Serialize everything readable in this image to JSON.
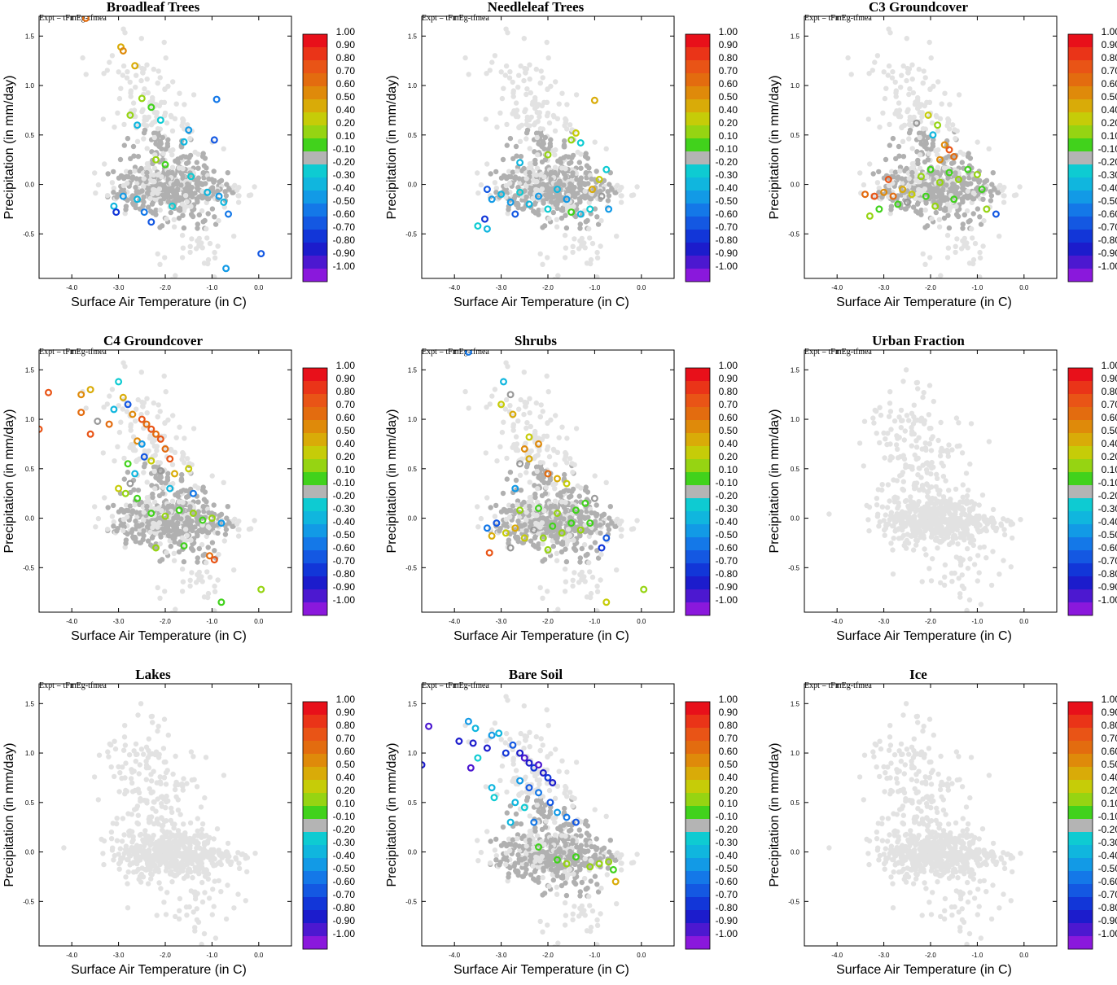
{
  "figure": {
    "experiment_label": "Expt = tFmEg-tfmea"
  },
  "chart_data": {
    "type": "scatter",
    "xlabel": "Surface Air Temperature (in C)",
    "ylabel": "Precipitation (in mm/day)",
    "xlim": [
      -4.7,
      0.7
    ],
    "ylim": [
      -0.95,
      1.7
    ],
    "x_ticks": [
      -4.0,
      -3.0,
      -2.0,
      -1.0,
      0.0
    ],
    "x_tick_labels": [
      "-4.0",
      "-3.0",
      "-2.0",
      "-1.0",
      "0.0"
    ],
    "y_ticks": [
      -0.5,
      0.0,
      0.5,
      1.0,
      1.5
    ],
    "y_tick_labels": [
      "-0.5",
      "0.0",
      "0.5",
      "1.0",
      "1.5"
    ],
    "colorbar": {
      "labels": [
        "1.00",
        "0.90",
        "0.80",
        "0.70",
        "0.60",
        "0.50",
        "0.40",
        "0.20",
        "0.10",
        "-0.10",
        "-0.20",
        "-0.30",
        "-0.40",
        "-0.50",
        "-0.60",
        "-0.70",
        "-0.80",
        "-0.90",
        "-1.00"
      ],
      "colors": [
        "#e8101a",
        "#ea3418",
        "#e95416",
        "#e36c0f",
        "#df8a0a",
        "#d9ab08",
        "#c6cc08",
        "#96d412",
        "#41d21c",
        "#b4b4b4",
        "#0ecbd2",
        "#10b6de",
        "#129ae6",
        "#1478e8",
        "#1458e2",
        "#1236d8",
        "#1c1ccc",
        "#4c18d0",
        "#8a18dc"
      ]
    },
    "panels": [
      {
        "title": "Broadleaf Trees",
        "points": [
          [
            -3.7,
            1.68,
            "0.70"
          ],
          [
            -2.95,
            1.39,
            "0.50"
          ],
          [
            -2.9,
            1.35,
            "0.60"
          ],
          [
            -2.65,
            1.2,
            "0.50"
          ],
          [
            -2.5,
            0.87,
            "0.20"
          ],
          [
            -2.75,
            0.7,
            "0.20"
          ],
          [
            -2.3,
            0.78,
            "0.10"
          ],
          [
            -2.1,
            0.65,
            "-0.20"
          ],
          [
            -2.6,
            0.6,
            "-0.30"
          ],
          [
            -1.5,
            0.55,
            "-0.40"
          ],
          [
            -0.9,
            0.86,
            "-0.50"
          ],
          [
            -1.6,
            0.43,
            "-0.30"
          ],
          [
            -0.95,
            0.45,
            "-0.60"
          ],
          [
            -2.0,
            0.2,
            "0.10"
          ],
          [
            -2.2,
            0.25,
            "0.20"
          ],
          [
            -2.9,
            -0.12,
            "-0.40"
          ],
          [
            -3.1,
            -0.22,
            "-0.30"
          ],
          [
            -3.05,
            -0.28,
            "-0.70"
          ],
          [
            -2.6,
            -0.15,
            "-0.30"
          ],
          [
            -2.45,
            -0.28,
            "-0.50"
          ],
          [
            -2.3,
            -0.38,
            "-0.60"
          ],
          [
            -1.85,
            -0.22,
            "-0.20"
          ],
          [
            -1.1,
            -0.08,
            "-0.30"
          ],
          [
            -0.85,
            -0.12,
            "-0.40"
          ],
          [
            -0.65,
            -0.3,
            "-0.50"
          ],
          [
            0.05,
            -0.7,
            "-0.60"
          ],
          [
            -0.7,
            -0.85,
            "-0.40"
          ],
          [
            -1.45,
            0.08,
            "-0.20"
          ],
          [
            -0.75,
            -0.18,
            "-0.30"
          ]
        ]
      },
      {
        "title": "Needleleaf Trees",
        "points": [
          [
            -1.0,
            0.85,
            "0.50"
          ],
          [
            -1.4,
            0.52,
            "0.40"
          ],
          [
            -1.5,
            0.45,
            "0.20"
          ],
          [
            -1.3,
            0.42,
            "-0.20"
          ],
          [
            -2.6,
            0.22,
            "-0.30"
          ],
          [
            -2.0,
            0.3,
            "0.20"
          ],
          [
            -3.3,
            -0.05,
            "-0.60"
          ],
          [
            -3.2,
            -0.15,
            "-0.40"
          ],
          [
            -3.0,
            -0.1,
            "-0.30"
          ],
          [
            -2.8,
            -0.18,
            "-0.40"
          ],
          [
            -2.6,
            -0.08,
            "-0.20"
          ],
          [
            -2.4,
            -0.2,
            "-0.30"
          ],
          [
            -2.2,
            -0.12,
            "-0.40"
          ],
          [
            -2.0,
            -0.25,
            "-0.20"
          ],
          [
            -1.8,
            -0.05,
            "-0.30"
          ],
          [
            -1.6,
            -0.15,
            "-0.40"
          ],
          [
            -1.3,
            -0.3,
            "-0.30"
          ],
          [
            -1.1,
            -0.25,
            "-0.20"
          ],
          [
            -0.9,
            0.05,
            "0.40"
          ],
          [
            -0.85,
            -0.12,
            "0.30"
          ],
          [
            -0.7,
            -0.25,
            "-0.40"
          ],
          [
            -3.35,
            -0.35,
            "-0.70"
          ],
          [
            -3.3,
            -0.45,
            "-0.30"
          ],
          [
            -3.5,
            -0.42,
            "-0.20"
          ],
          [
            -2.7,
            -0.3,
            "-0.60"
          ],
          [
            -1.5,
            -0.28,
            "0.10"
          ],
          [
            -0.75,
            0.15,
            "-0.20"
          ],
          [
            -1.05,
            -0.05,
            "0.50"
          ]
        ]
      },
      {
        "title": "C3 Groundcover",
        "points": [
          [
            -2.05,
            0.7,
            "0.40"
          ],
          [
            -1.85,
            0.6,
            "0.20"
          ],
          [
            -1.95,
            0.5,
            "-0.30"
          ],
          [
            -2.3,
            0.62,
            "0.30"
          ],
          [
            -1.7,
            0.4,
            "0.60"
          ],
          [
            -1.6,
            0.35,
            "0.80"
          ],
          [
            -1.5,
            0.28,
            "0.70"
          ],
          [
            -1.8,
            0.25,
            "0.60"
          ],
          [
            -3.4,
            -0.1,
            "0.70"
          ],
          [
            -3.2,
            -0.12,
            "0.80"
          ],
          [
            -3.0,
            -0.08,
            "0.60"
          ],
          [
            -2.8,
            -0.12,
            "0.70"
          ],
          [
            -2.6,
            -0.05,
            "0.50"
          ],
          [
            -2.4,
            -0.1,
            "0.40"
          ],
          [
            -2.9,
            0.05,
            "0.80"
          ],
          [
            -2.2,
            0.08,
            "0.20"
          ],
          [
            -2.0,
            0.15,
            "0.10"
          ],
          [
            -1.8,
            0.02,
            "0.20"
          ],
          [
            -1.6,
            0.12,
            "0.10"
          ],
          [
            -1.4,
            0.05,
            "0.20"
          ],
          [
            -1.2,
            0.15,
            "0.10"
          ],
          [
            -1.0,
            0.1,
            "0.20"
          ],
          [
            -0.9,
            -0.05,
            "0.10"
          ],
          [
            -2.1,
            -0.12,
            "0.10"
          ],
          [
            -1.9,
            -0.22,
            "0.20"
          ],
          [
            -2.5,
            -0.18,
            "0.30"
          ],
          [
            -3.3,
            -0.32,
            "0.20"
          ],
          [
            -3.1,
            -0.25,
            "0.10"
          ],
          [
            -2.7,
            -0.2,
            "0.10"
          ],
          [
            -0.8,
            -0.25,
            "0.20"
          ],
          [
            -0.6,
            -0.3,
            "-0.60"
          ],
          [
            -1.5,
            -0.15,
            "0.10"
          ]
        ]
      },
      {
        "title": "C4 Groundcover",
        "points": [
          [
            -4.7,
            0.9,
            "0.80"
          ],
          [
            -4.5,
            1.27,
            "0.80"
          ],
          [
            -3.8,
            1.25,
            "0.60"
          ],
          [
            -3.6,
            1.3,
            "0.50"
          ],
          [
            -3.8,
            1.07,
            "0.70"
          ],
          [
            -3.6,
            0.85,
            "0.80"
          ],
          [
            -3.45,
            0.98,
            "0.30"
          ],
          [
            -3.2,
            0.95,
            "0.70"
          ],
          [
            -3.1,
            1.1,
            "-0.30"
          ],
          [
            -3.0,
            1.38,
            "-0.20"
          ],
          [
            -2.9,
            1.22,
            "0.50"
          ],
          [
            -2.8,
            1.15,
            "-0.60"
          ],
          [
            -2.7,
            1.05,
            "0.60"
          ],
          [
            -2.5,
            1.0,
            "0.80"
          ],
          [
            -2.4,
            0.95,
            "0.70"
          ],
          [
            -2.3,
            0.9,
            "0.80"
          ],
          [
            -2.2,
            0.85,
            "0.70"
          ],
          [
            -2.1,
            0.8,
            "0.80"
          ],
          [
            -2.6,
            0.78,
            "0.60"
          ],
          [
            -2.5,
            0.75,
            "-0.40"
          ],
          [
            -2.45,
            0.62,
            "-0.60"
          ],
          [
            -2.3,
            0.58,
            "0.40"
          ],
          [
            -2.0,
            0.7,
            "0.70"
          ],
          [
            -1.9,
            0.6,
            "0.80"
          ],
          [
            -2.8,
            0.55,
            "0.10"
          ],
          [
            -2.65,
            0.45,
            "-0.30"
          ],
          [
            -2.1,
            0.48,
            "0.30"
          ],
          [
            -1.8,
            0.45,
            "0.50"
          ],
          [
            -1.5,
            0.5,
            "0.40"
          ],
          [
            -3.0,
            0.3,
            "0.40"
          ],
          [
            -2.85,
            0.25,
            "0.20"
          ],
          [
            -2.6,
            0.2,
            "0.10"
          ],
          [
            -1.9,
            0.3,
            "-0.30"
          ],
          [
            -2.3,
            0.05,
            "0.10"
          ],
          [
            -2.0,
            0.02,
            "0.20"
          ],
          [
            -1.7,
            0.08,
            "0.10"
          ],
          [
            -1.4,
            0.05,
            "0.20"
          ],
          [
            -1.2,
            -0.02,
            "0.10"
          ],
          [
            -1.0,
            0.0,
            "0.20"
          ],
          [
            -0.8,
            -0.05,
            "-0.40"
          ],
          [
            -2.2,
            -0.3,
            "0.20"
          ],
          [
            -1.6,
            -0.28,
            "0.10"
          ],
          [
            -1.05,
            -0.38,
            "0.70"
          ],
          [
            -0.95,
            -0.42,
            "0.80"
          ],
          [
            0.05,
            -0.72,
            "0.20"
          ],
          [
            -0.8,
            -0.85,
            "0.10"
          ],
          [
            -1.4,
            0.25,
            "-0.50"
          ],
          [
            -2.75,
            0.35,
            "0.30"
          ]
        ]
      },
      {
        "title": "Shrubs",
        "points": [
          [
            -3.7,
            1.68,
            "-0.50"
          ],
          [
            -2.95,
            1.38,
            "-0.30"
          ],
          [
            -2.8,
            1.25,
            "0.30"
          ],
          [
            -3.0,
            1.15,
            "0.40"
          ],
          [
            -2.75,
            1.05,
            "0.50"
          ],
          [
            -2.4,
            0.82,
            "0.40"
          ],
          [
            -2.5,
            0.7,
            "0.60"
          ],
          [
            -2.4,
            0.6,
            "0.50"
          ],
          [
            -2.2,
            0.75,
            "0.60"
          ],
          [
            -2.6,
            0.55,
            "0.30"
          ],
          [
            -2.0,
            0.45,
            "0.70"
          ],
          [
            -1.8,
            0.4,
            "0.50"
          ],
          [
            -1.6,
            0.35,
            "0.40"
          ],
          [
            -2.7,
            0.3,
            "-0.40"
          ],
          [
            -3.3,
            -0.1,
            "-0.50"
          ],
          [
            -3.1,
            -0.05,
            "-0.60"
          ],
          [
            -3.2,
            -0.18,
            "0.50"
          ],
          [
            -2.9,
            -0.15,
            "0.40"
          ],
          [
            -2.7,
            -0.1,
            "0.50"
          ],
          [
            -2.5,
            -0.2,
            "0.40"
          ],
          [
            -2.3,
            -0.12,
            "0.30"
          ],
          [
            -2.1,
            -0.2,
            "0.20"
          ],
          [
            -1.9,
            -0.08,
            "0.10"
          ],
          [
            -1.7,
            -0.15,
            "0.20"
          ],
          [
            -1.5,
            -0.05,
            "0.10"
          ],
          [
            -1.3,
            -0.12,
            "0.20"
          ],
          [
            -1.1,
            -0.05,
            "0.10"
          ],
          [
            -2.6,
            0.08,
            "0.20"
          ],
          [
            -2.2,
            0.1,
            "0.10"
          ],
          [
            -1.8,
            0.05,
            "0.20"
          ],
          [
            -1.4,
            0.08,
            "0.10"
          ],
          [
            -2.0,
            -0.32,
            "0.20"
          ],
          [
            -2.8,
            -0.3,
            "0.30"
          ],
          [
            -3.25,
            -0.35,
            "0.80"
          ],
          [
            -0.85,
            -0.3,
            "-0.70"
          ],
          [
            -0.75,
            -0.2,
            "-0.60"
          ],
          [
            0.05,
            -0.72,
            "0.20"
          ],
          [
            -0.75,
            -0.85,
            "0.40"
          ],
          [
            -1.0,
            0.2,
            "0.30"
          ],
          [
            -1.2,
            0.15,
            "0.10"
          ]
        ]
      },
      {
        "title": "Urban Fraction",
        "points": []
      },
      {
        "title": "Lakes",
        "points": []
      },
      {
        "title": "Bare Soil",
        "points": [
          [
            -4.7,
            0.88,
            "-0.80"
          ],
          [
            -4.55,
            1.27,
            "-0.90"
          ],
          [
            -3.9,
            1.12,
            "-0.80"
          ],
          [
            -3.7,
            1.32,
            "-0.40"
          ],
          [
            -3.55,
            1.25,
            "-0.30"
          ],
          [
            -3.6,
            1.1,
            "-0.80"
          ],
          [
            -3.65,
            0.85,
            "-0.90"
          ],
          [
            -3.5,
            0.95,
            "-0.20"
          ],
          [
            -3.3,
            1.05,
            "-0.80"
          ],
          [
            -3.2,
            1.18,
            "-0.40"
          ],
          [
            -3.05,
            1.2,
            "-0.30"
          ],
          [
            -2.9,
            1.0,
            "-0.70"
          ],
          [
            -2.75,
            1.08,
            "-0.60"
          ],
          [
            -2.6,
            1.0,
            "-0.80"
          ],
          [
            -2.5,
            0.95,
            "-0.90"
          ],
          [
            -2.4,
            0.9,
            "-0.80"
          ],
          [
            -2.3,
            0.85,
            "-0.70"
          ],
          [
            -2.2,
            0.88,
            "-0.90"
          ],
          [
            -2.1,
            0.8,
            "-0.80"
          ],
          [
            -2.0,
            0.75,
            "-0.70"
          ],
          [
            -1.9,
            0.7,
            "-0.80"
          ],
          [
            -2.6,
            0.72,
            "-0.40"
          ],
          [
            -2.4,
            0.65,
            "-0.60"
          ],
          [
            -2.2,
            0.6,
            "-0.50"
          ],
          [
            -1.95,
            0.5,
            "-0.60"
          ],
          [
            -2.7,
            0.5,
            "-0.30"
          ],
          [
            -2.5,
            0.45,
            "-0.20"
          ],
          [
            -2.8,
            0.3,
            "-0.30"
          ],
          [
            -2.3,
            0.3,
            "-0.50"
          ],
          [
            -1.8,
            0.4,
            "-0.40"
          ],
          [
            -1.6,
            0.35,
            "-0.50"
          ],
          [
            -1.4,
            0.3,
            "-0.60"
          ],
          [
            -3.2,
            0.65,
            "-0.30"
          ],
          [
            -3.15,
            0.55,
            "-0.20"
          ],
          [
            -2.2,
            0.05,
            "0.10"
          ],
          [
            -1.8,
            -0.08,
            "0.10"
          ],
          [
            -1.6,
            -0.12,
            "0.20"
          ],
          [
            -1.4,
            -0.05,
            "0.10"
          ],
          [
            -0.9,
            -0.12,
            "0.20"
          ],
          [
            -0.6,
            -0.18,
            "0.10"
          ],
          [
            -0.7,
            -0.1,
            "0.20"
          ],
          [
            -0.55,
            -0.3,
            "0.50"
          ],
          [
            -1.1,
            -0.15,
            "0.20"
          ]
        ]
      },
      {
        "title": "Ice",
        "points": []
      }
    ]
  }
}
